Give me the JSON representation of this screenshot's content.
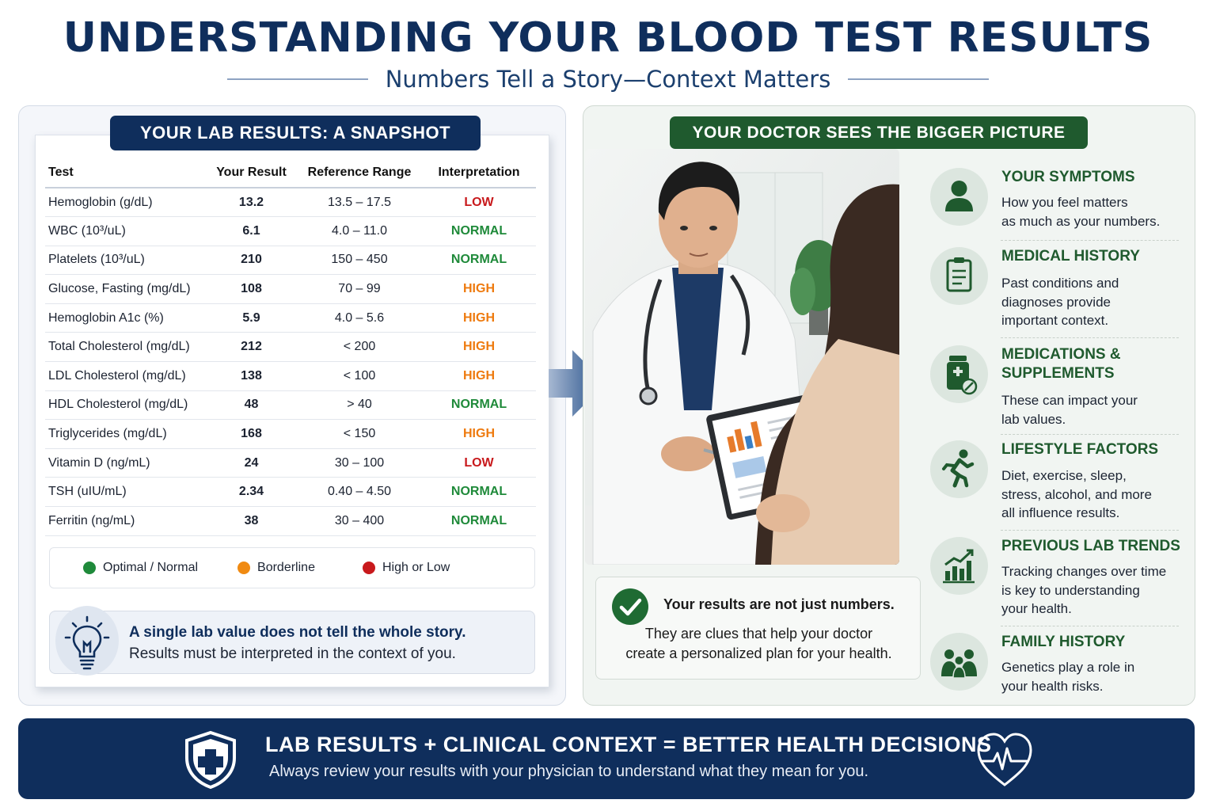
{
  "title": "UNDERSTANDING YOUR BLOOD TEST RESULTS",
  "subtitle": "Numbers Tell a Story—Context Matters",
  "lab_panel": {
    "header": "YOUR LAB RESULTS: A SNAPSHOT",
    "columns": [
      "Test",
      "Your Result",
      "Reference Range",
      "Interpretation"
    ],
    "rows": [
      {
        "test": "Hemoglobin (g/dL)",
        "result": "13.2",
        "range": "13.5 – 17.5",
        "status": "LOW"
      },
      {
        "test": "WBC (10³/uL)",
        "result": "6.1",
        "range": "4.0 – 11.0",
        "status": "NORMAL"
      },
      {
        "test": "Platelets (10³/uL)",
        "result": "210",
        "range": "150 – 450",
        "status": "NORMAL"
      },
      {
        "test": "Glucose, Fasting (mg/dL)",
        "result": "108",
        "range": "70 – 99",
        "status": "HIGH"
      },
      {
        "test": "Hemoglobin A1c (%)",
        "result": "5.9",
        "range": "4.0 – 5.6",
        "status": "HIGH"
      },
      {
        "test": "Total Cholesterol (mg/dL)",
        "result": "212",
        "range": "< 200",
        "status": "HIGH"
      },
      {
        "test": "LDL Cholesterol (mg/dL)",
        "result": "138",
        "range": "< 100",
        "status": "HIGH"
      },
      {
        "test": "HDL Cholesterol (mg/dL)",
        "result": "48",
        "range": "> 40",
        "status": "NORMAL"
      },
      {
        "test": "Triglycerides (mg/dL)",
        "result": "168",
        "range": "< 150",
        "status": "HIGH"
      },
      {
        "test": "Vitamin D (ng/mL)",
        "result": "24",
        "range": "30 – 100",
        "status": "LOW"
      },
      {
        "test": "TSH (uIU/mL)",
        "result": "2.34",
        "range": "0.40 – 4.50",
        "status": "NORMAL"
      },
      {
        "test": "Ferritin (ng/mL)",
        "result": "38",
        "range": "30 – 400",
        "status": "NORMAL"
      }
    ],
    "legend": [
      {
        "label": "Optimal / Normal",
        "color": "#1f8a3a"
      },
      {
        "label": "Borderline",
        "color": "#f08a12"
      },
      {
        "label": "High or Low",
        "color": "#c8191c"
      }
    ],
    "status_colors": {
      "LOW": "#c8191c",
      "HIGH": "#ee7a0e",
      "NORMAL": "#1f8a3a"
    },
    "callout_bold": "A single lab value does not tell the whole story.",
    "callout_text": "Results must be interpreted in the context of you."
  },
  "doctor_panel": {
    "header": "YOUR DOCTOR SEES THE BIGGER PICTURE",
    "note_bold": "Your results are not just numbers.",
    "note_line1": "They are clues that help your doctor",
    "note_line2": "create a personalized plan for your health.",
    "factors": [
      {
        "icon": "person-icon",
        "title": [
          "YOUR SYMPTOMS"
        ],
        "desc": [
          "How you feel matters",
          "as much as your numbers."
        ]
      },
      {
        "icon": "clipboard-icon",
        "title": [
          "MEDICAL HISTORY"
        ],
        "desc": [
          "Past conditions and",
          "diagnoses provide",
          "important context."
        ]
      },
      {
        "icon": "pill-bottle-icon",
        "title": [
          "MEDICATIONS &",
          "SUPPLEMENTS"
        ],
        "desc": [
          "These can impact your",
          "lab values."
        ]
      },
      {
        "icon": "running-person-icon",
        "title": [
          "LIFESTYLE FACTORS"
        ],
        "desc": [
          "Diet, exercise, sleep,",
          "stress, alcohol, and more",
          "all influence results."
        ]
      },
      {
        "icon": "trend-chart-icon",
        "title": [
          "PREVIOUS LAB TRENDS"
        ],
        "desc": [
          "Tracking changes over time",
          "is key to understanding",
          "your health."
        ]
      },
      {
        "icon": "family-icon",
        "title": [
          "FAMILY HISTORY"
        ],
        "desc": [
          "Genetics play a role in",
          "your health risks."
        ]
      }
    ]
  },
  "footer": {
    "title": "LAB RESULTS + CLINICAL CONTEXT = BETTER HEALTH DECISIONS",
    "subtitle": "Always review your results with your physician to understand what they mean for you."
  },
  "icons": {
    "shield": "shield-plus-icon",
    "heart": "heartbeat-icon",
    "bulb": "lightbulb-icon",
    "check": "checkmark-icon",
    "arrow": "arrow-right-icon"
  }
}
